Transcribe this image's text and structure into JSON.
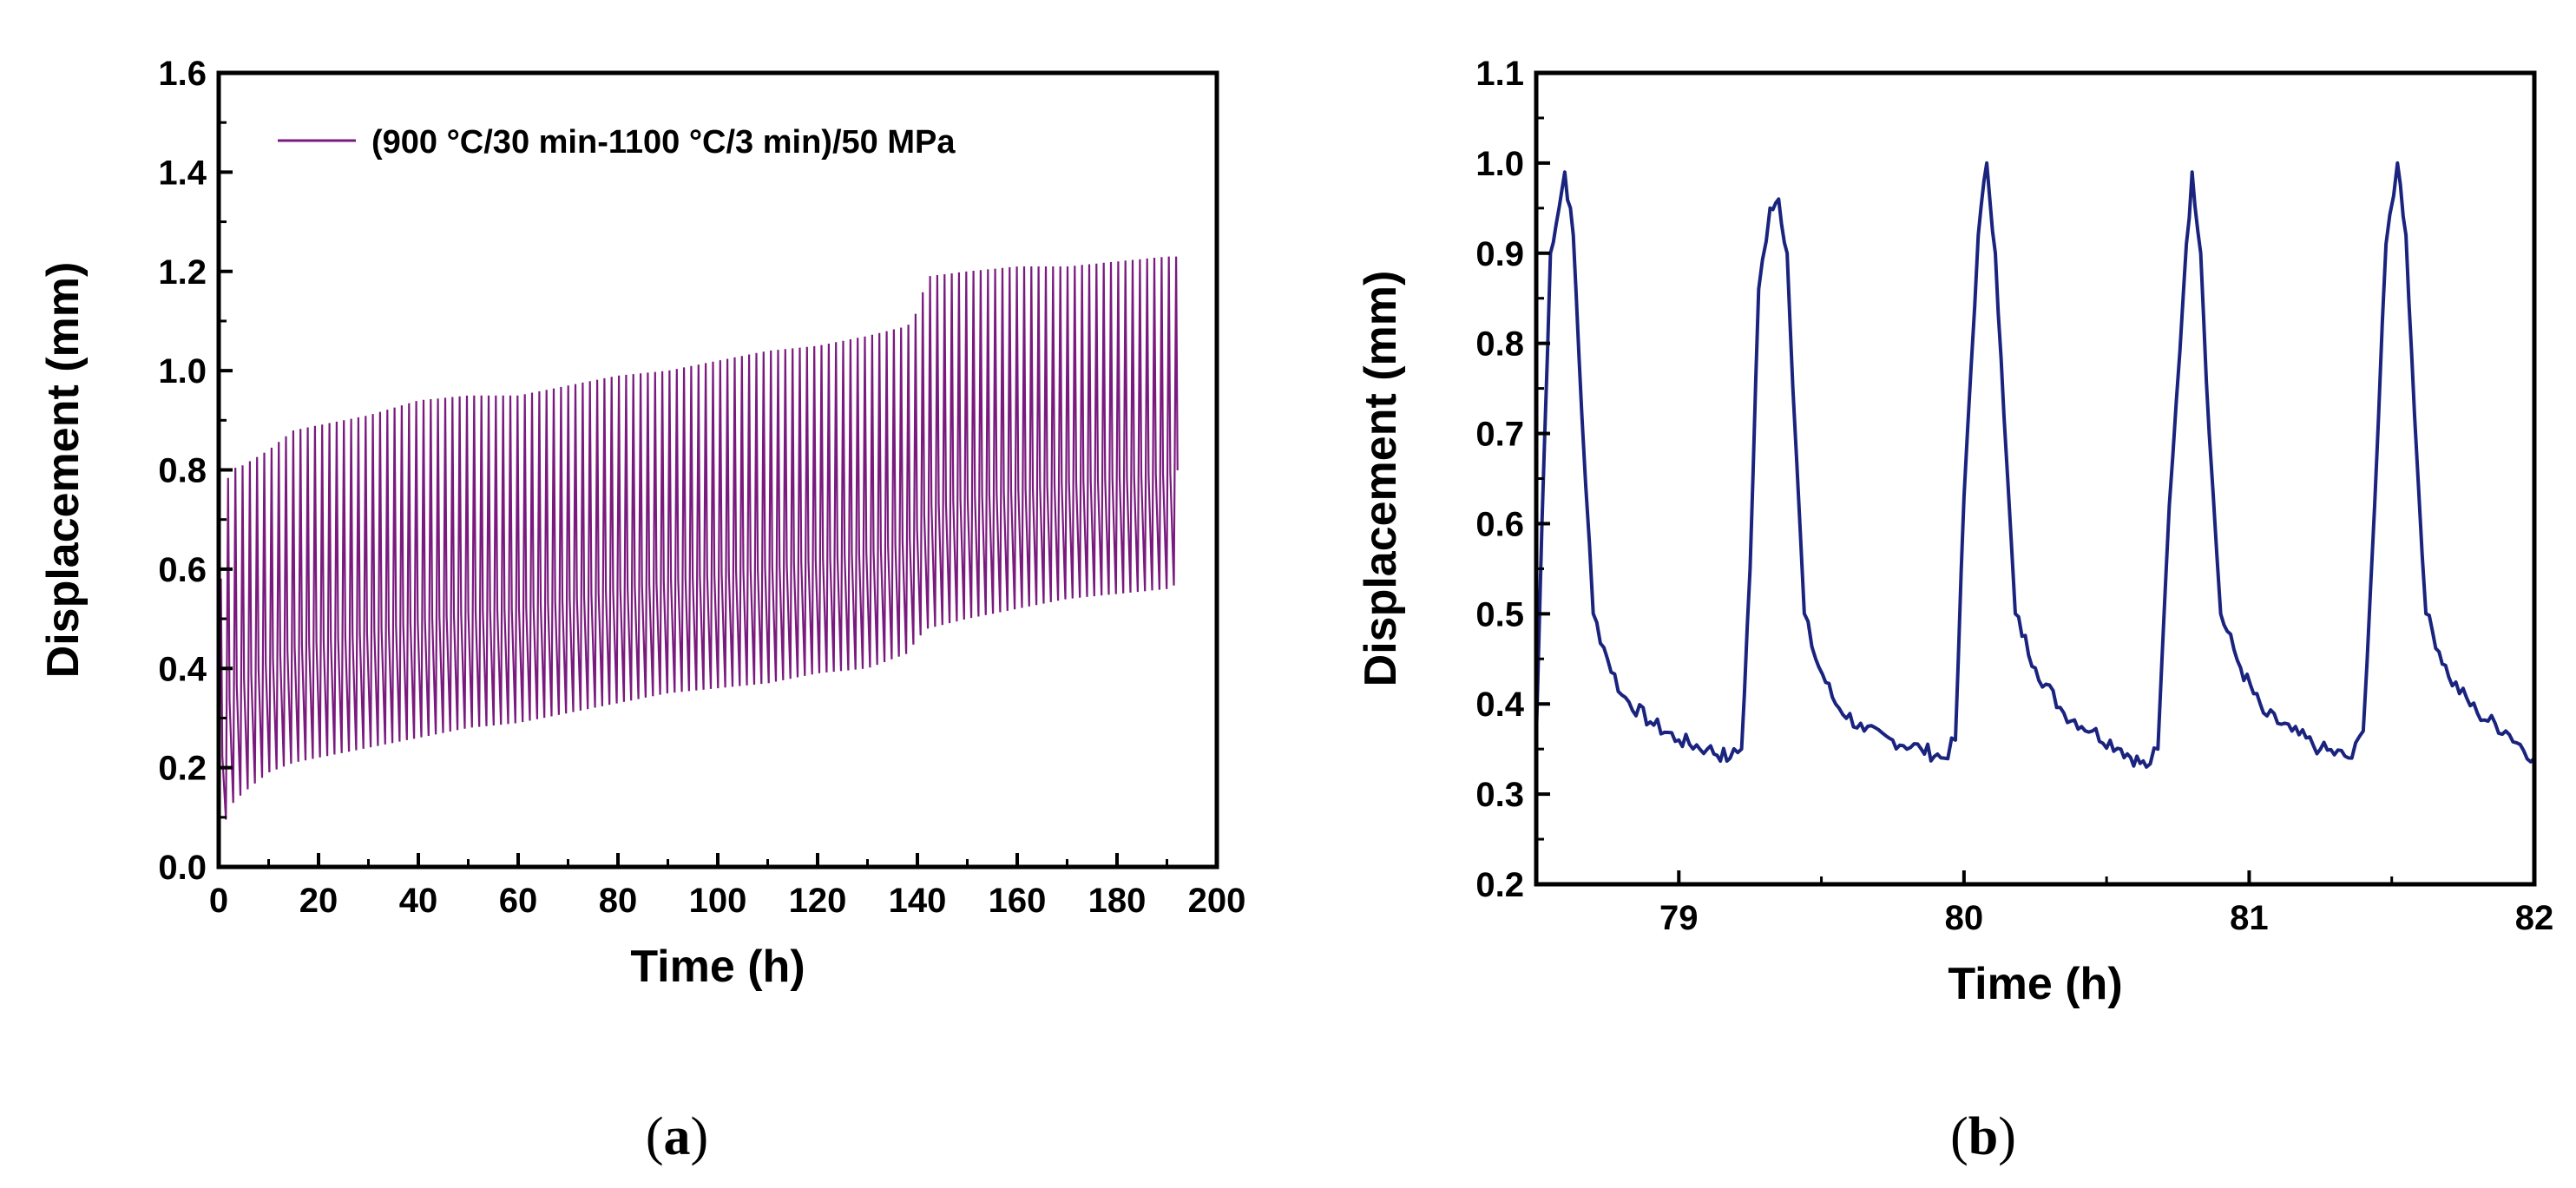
{
  "chart_data": [
    {
      "panel": "a",
      "type": "line",
      "title": "",
      "xlabel": "Time (h)",
      "ylabel": "Displacement (mm)",
      "xlim": [
        0,
        200
      ],
      "ylim": [
        0.0,
        1.6
      ],
      "xticks": [
        0,
        20,
        40,
        60,
        80,
        100,
        120,
        140,
        160,
        180,
        200
      ],
      "xtick_labels": [
        "0",
        "20",
        "40",
        "60",
        "80",
        "100",
        "120",
        "140",
        "160",
        "180",
        "200"
      ],
      "yticks": [
        0.0,
        0.2,
        0.4,
        0.6,
        0.8,
        1.0,
        1.2,
        1.4,
        1.6
      ],
      "ytick_labels": [
        "0.0",
        "0.2",
        "0.4",
        "0.6",
        "0.8",
        "1.0",
        "1.2",
        "1.4",
        "1.6"
      ],
      "legend": {
        "label": "(900 °C/30 min-1100 °C/3 min)/50 MPa",
        "position": "top-left"
      },
      "series": [
        {
          "name": "(900 °C/30 min-1100 °C/3 min)/50 MPa",
          "color": "#7a1a7e",
          "cycle_period_h": 1.45,
          "envelope_time_h": [
            0,
            2,
            5,
            10,
            15,
            20,
            30,
            40,
            50,
            60,
            70,
            80,
            90,
            100,
            110,
            120,
            130,
            138,
            140,
            142,
            150,
            160,
            170,
            180,
            190,
            192
          ],
          "envelope_min_mm": [
            0.03,
            0.12,
            0.15,
            0.19,
            0.21,
            0.22,
            0.24,
            0.26,
            0.28,
            0.29,
            0.31,
            0.33,
            0.35,
            0.36,
            0.37,
            0.39,
            0.4,
            0.43,
            0.46,
            0.48,
            0.5,
            0.52,
            0.54,
            0.55,
            0.56,
            0.57
          ],
          "envelope_max_mm": [
            0.52,
            0.8,
            0.81,
            0.84,
            0.88,
            0.89,
            0.91,
            0.94,
            0.95,
            0.95,
            0.97,
            0.99,
            1.0,
            1.02,
            1.04,
            1.05,
            1.07,
            1.09,
            1.12,
            1.19,
            1.2,
            1.21,
            1.21,
            1.22,
            1.23,
            1.23
          ]
        }
      ]
    },
    {
      "panel": "b",
      "type": "line",
      "title": "",
      "xlabel": "Time (h)",
      "ylabel": "Displacement (mm)",
      "xlim": [
        78.5,
        82
      ],
      "ylim": [
        0.2,
        1.1
      ],
      "xticks": [
        79,
        80,
        81,
        82
      ],
      "xtick_labels": [
        "79",
        "80",
        "81",
        "82"
      ],
      "yticks": [
        0.2,
        0.3,
        0.4,
        0.5,
        0.6,
        0.7,
        0.8,
        0.9,
        1.0,
        1.1
      ],
      "ytick_labels": [
        "0.2",
        "0.3",
        "0.4",
        "0.5",
        "0.6",
        "0.7",
        "0.8",
        "0.9",
        "1.0",
        "1.1"
      ],
      "series": [
        {
          "name": "displacement",
          "color": "#1a237e",
          "x": [
            78.5,
            78.52,
            78.55,
            78.58,
            78.6,
            78.63,
            78.66,
            78.7,
            78.75,
            78.8,
            78.9,
            79.0,
            79.1,
            79.18,
            79.22,
            79.25,
            79.28,
            79.32,
            79.35,
            79.38,
            79.4,
            79.44,
            79.48,
            79.55,
            79.65,
            79.75,
            79.85,
            79.93,
            79.97,
            80.0,
            80.05,
            80.08,
            80.11,
            80.14,
            80.18,
            80.25,
            80.35,
            80.45,
            80.55,
            80.64,
            80.68,
            80.72,
            80.77,
            80.8,
            80.83,
            80.86,
            80.9,
            80.97,
            81.05,
            81.15,
            81.25,
            81.36,
            81.4,
            81.44,
            81.48,
            81.52,
            81.55,
            81.58,
            81.62,
            81.7,
            81.8,
            81.9,
            82.0
          ],
          "y": [
            0.36,
            0.6,
            0.9,
            0.95,
            0.99,
            0.92,
            0.72,
            0.5,
            0.45,
            0.41,
            0.38,
            0.36,
            0.35,
            0.34,
            0.35,
            0.55,
            0.86,
            0.95,
            0.96,
            0.9,
            0.75,
            0.5,
            0.45,
            0.4,
            0.37,
            0.36,
            0.35,
            0.34,
            0.36,
            0.63,
            0.92,
            1.0,
            0.9,
            0.72,
            0.5,
            0.44,
            0.39,
            0.37,
            0.35,
            0.33,
            0.35,
            0.62,
            0.86,
            0.99,
            0.9,
            0.7,
            0.5,
            0.44,
            0.39,
            0.37,
            0.35,
            0.34,
            0.37,
            0.62,
            0.91,
            1.0,
            0.92,
            0.72,
            0.5,
            0.43,
            0.39,
            0.37,
            0.34
          ]
        }
      ]
    }
  ],
  "panel_labels": {
    "a_open": "(",
    "a_letter": "a",
    "a_close": ")",
    "b_open": "(",
    "b_letter": "b",
    "b_close": ")"
  }
}
